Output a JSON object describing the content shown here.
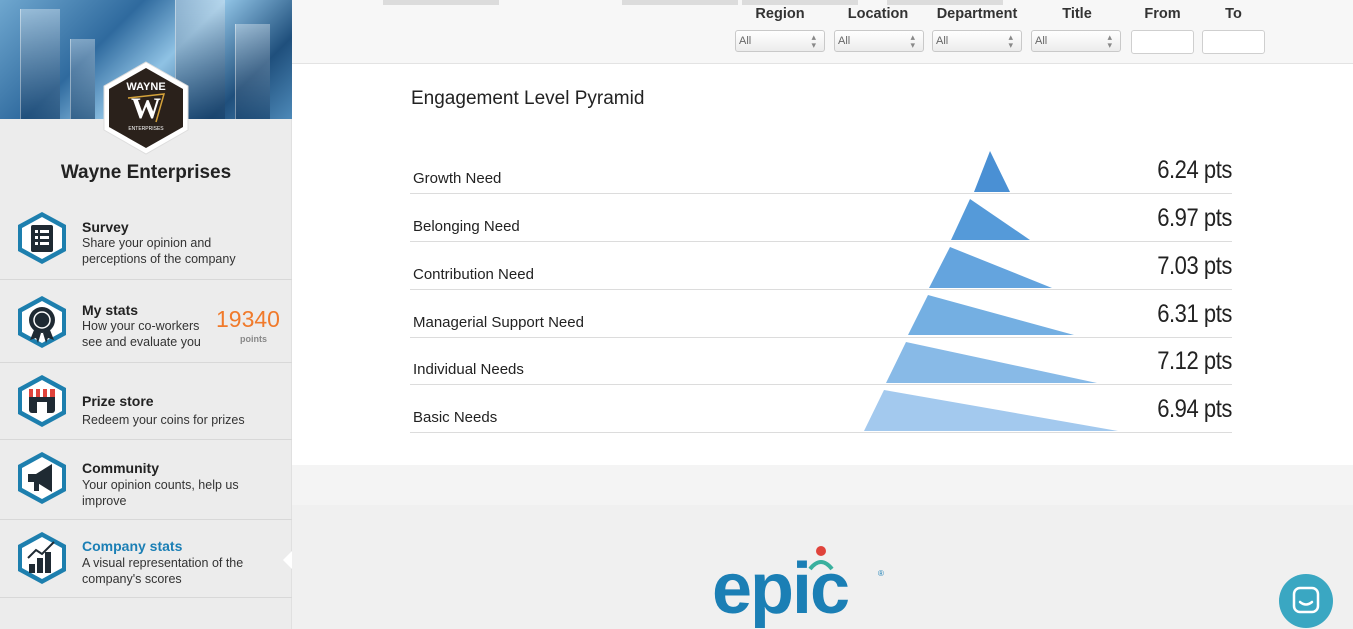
{
  "company": {
    "name": "Wayne Enterprises",
    "logo_text_top": "WAYNE",
    "logo_letter": "W",
    "logo_text_bottom": "ENTERPRISES"
  },
  "menu": [
    {
      "title": "Survey",
      "desc": "Share your opinion and perceptions of the company",
      "icon": "survey-list-icon"
    },
    {
      "title": "My stats",
      "desc": "How your co-workers see and evaluate you",
      "icon": "medal-icon",
      "points": "19340",
      "points_label": "points"
    },
    {
      "title": "Prize store",
      "desc": "Redeem your coins for prizes",
      "icon": "store-icon"
    },
    {
      "title": "Community",
      "desc": "Your opinion counts, help us improve",
      "icon": "megaphone-icon"
    },
    {
      "title": "Company stats",
      "desc": "A visual representation of the company's scores",
      "icon": "bar-chart-icon",
      "active": true
    }
  ],
  "filters": {
    "region": {
      "label": "Region",
      "value": "All"
    },
    "location": {
      "label": "Location",
      "value": "All"
    },
    "department": {
      "label": "Department",
      "value": "All"
    },
    "title": {
      "label": "Title",
      "value": "All"
    },
    "from": {
      "label": "From",
      "value": ""
    },
    "to": {
      "label": "To",
      "value": ""
    }
  },
  "card": {
    "title": "Engagement Level Pyramid"
  },
  "colors": {
    "accent": "#1b7fb5",
    "points": "#f07a2b",
    "pyramid_top": "#4a90d4",
    "pyramid_bottom": "#a3c9ee"
  },
  "chart_data": {
    "type": "table",
    "title": "Engagement Level Pyramid",
    "rows": [
      {
        "label": "Growth Need",
        "value": "6.24 pts"
      },
      {
        "label": "Belonging Need",
        "value": "6.97 pts"
      },
      {
        "label": "Contribution Need",
        "value": "7.03 pts"
      },
      {
        "label": "Managerial Support Need",
        "value": "6.31 pts"
      },
      {
        "label": "Individual Needs",
        "value": "7.12 pts"
      },
      {
        "label": "Basic Needs",
        "value": "6.94 pts"
      }
    ]
  },
  "footer": {
    "brand": "epic"
  }
}
